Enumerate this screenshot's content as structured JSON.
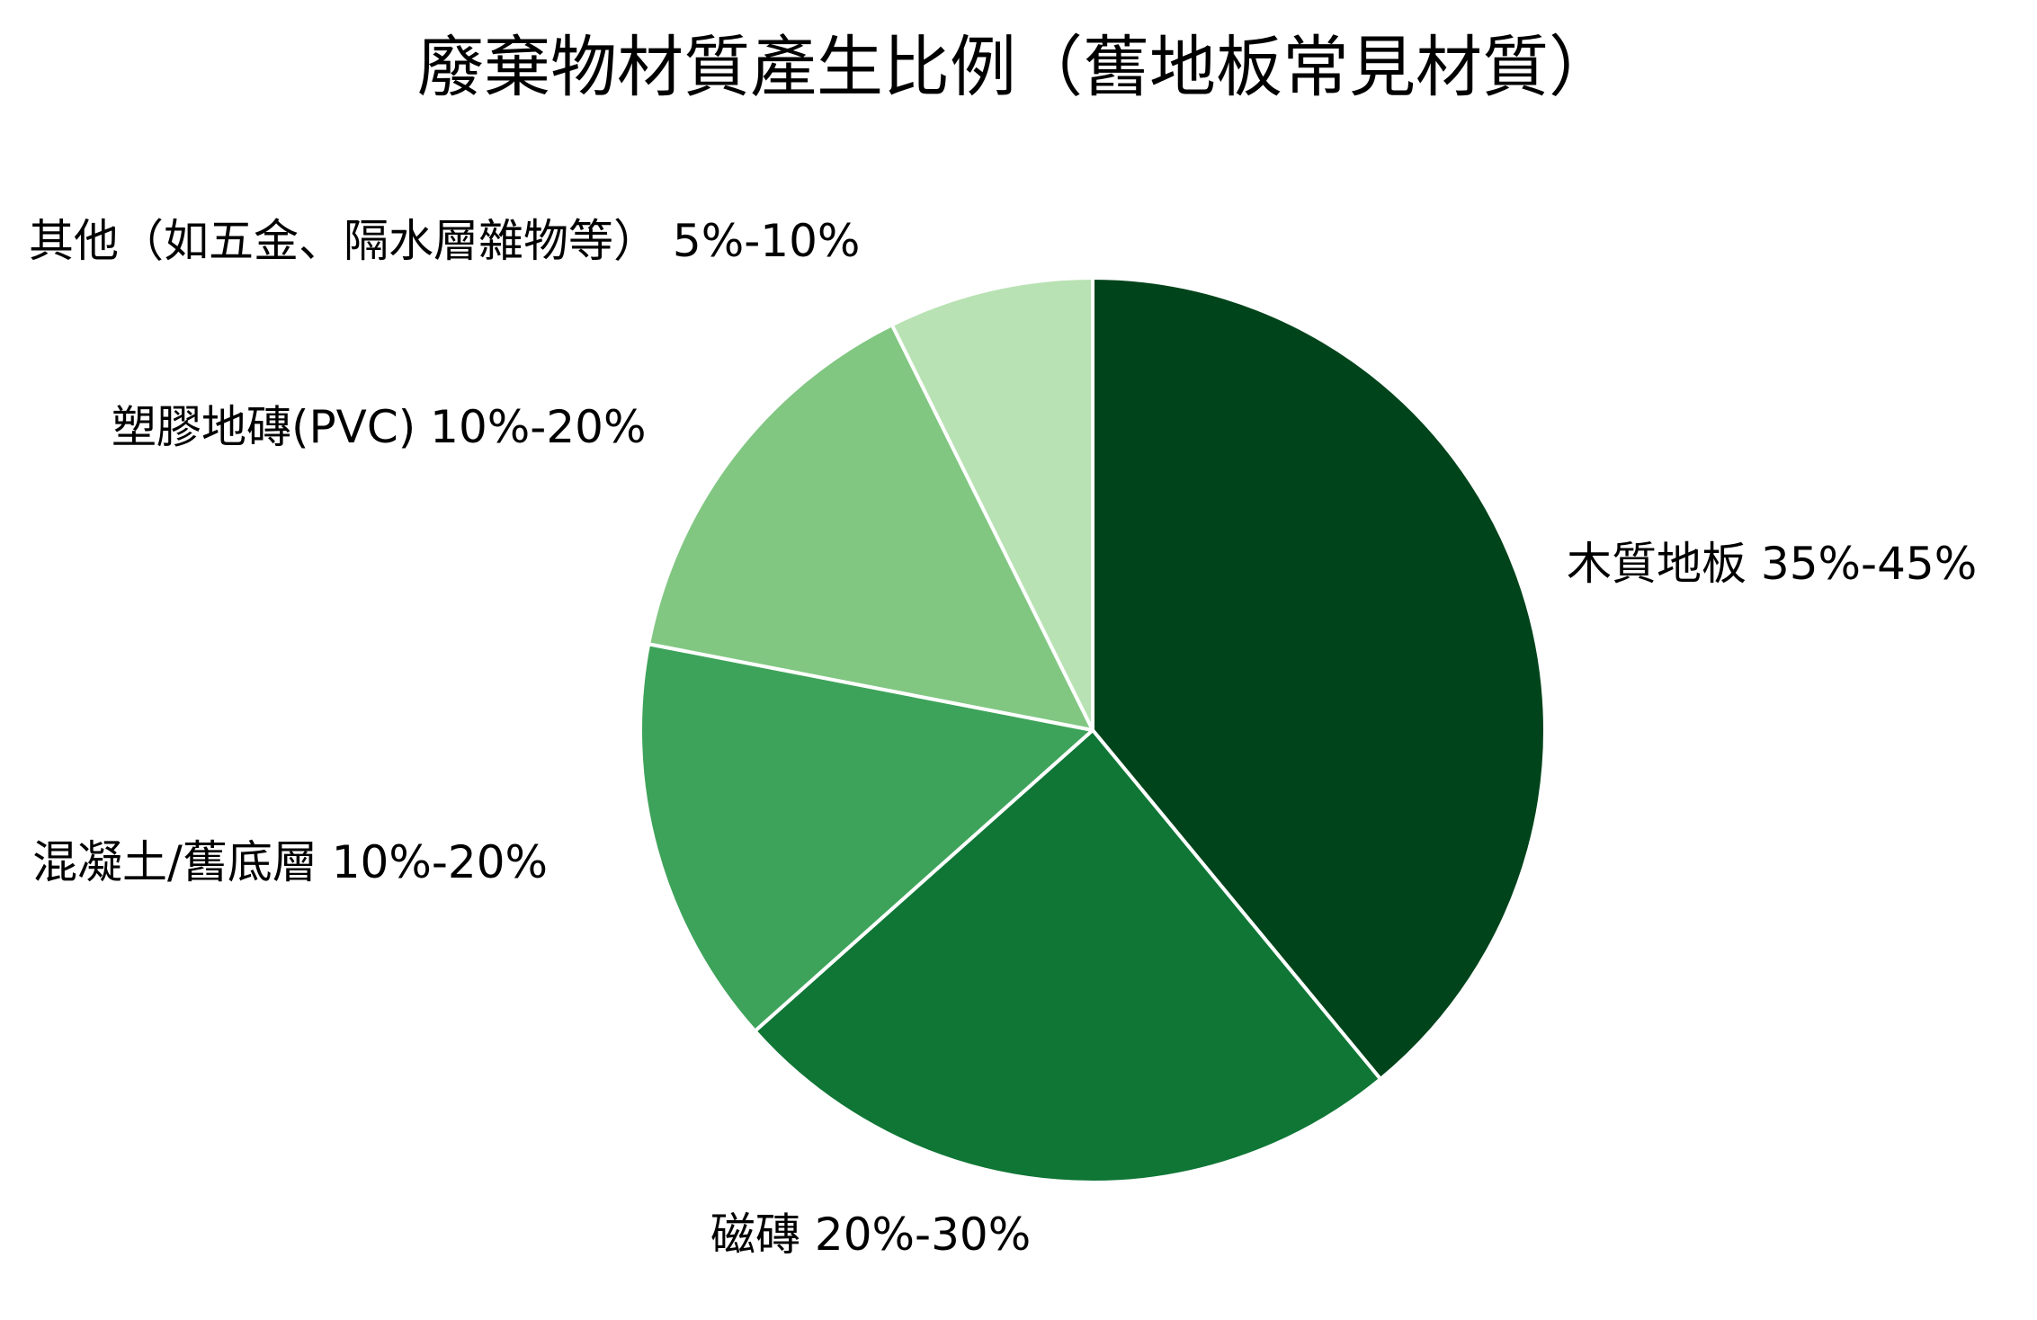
{
  "chart_data": {
    "type": "pie",
    "title": "廢棄物材質產生比例（舊地板常見材質）",
    "slices": [
      {
        "label": "木質地板 35%-45%",
        "value": 40,
        "color": "#00441b"
      },
      {
        "label": "磁磚 20%-30%",
        "value": 25,
        "color": "#0f7636"
      },
      {
        "label": "混凝土/舊底層 10%-20%",
        "value": 15,
        "color": "#3ea35a"
      },
      {
        "label": "塑膠地磚(PVC) 10%-20%",
        "value": 15,
        "color": "#81c782"
      },
      {
        "label": "其他（如五金、隔水層雜物等） 5%-10%",
        "value": 7.5,
        "color": "#b8e2b3"
      }
    ],
    "start_angle_deg": 0,
    "direction": "clockwise",
    "slice_border_color": "#ffffff",
    "legend": "none"
  }
}
